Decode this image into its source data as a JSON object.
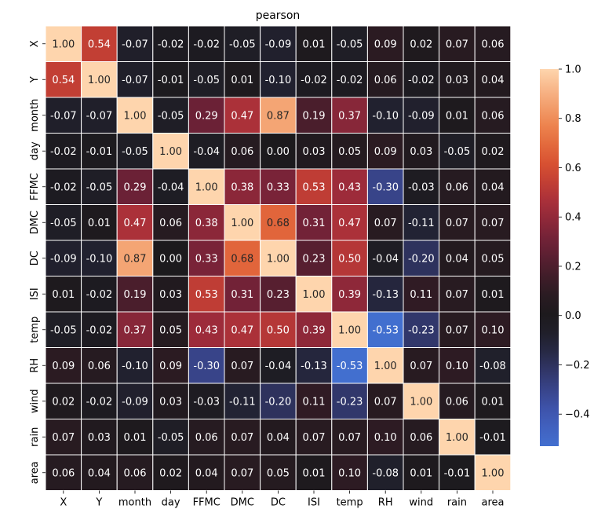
{
  "chart_data": {
    "type": "heatmap",
    "title": "pearson",
    "x_labels": [
      "X",
      "Y",
      "month",
      "day",
      "FFMC",
      "DMC",
      "DC",
      "ISI",
      "temp",
      "RH",
      "wind",
      "rain",
      "area"
    ],
    "y_labels": [
      "X",
      "Y",
      "month",
      "day",
      "FFMC",
      "DMC",
      "DC",
      "ISI",
      "temp",
      "RH",
      "wind",
      "rain",
      "area"
    ],
    "matrix": [
      [
        1.0,
        0.54,
        -0.07,
        -0.02,
        -0.02,
        -0.05,
        -0.09,
        0.01,
        -0.05,
        0.09,
        0.02,
        0.07,
        0.06
      ],
      [
        0.54,
        1.0,
        -0.07,
        -0.01,
        -0.05,
        0.01,
        -0.1,
        -0.02,
        -0.02,
        0.06,
        -0.02,
        0.03,
        0.04
      ],
      [
        -0.07,
        -0.07,
        1.0,
        -0.05,
        0.29,
        0.47,
        0.87,
        0.19,
        0.37,
        -0.1,
        -0.09,
        0.01,
        0.06
      ],
      [
        -0.02,
        -0.01,
        -0.05,
        1.0,
        -0.04,
        0.06,
        0.0,
        0.03,
        0.05,
        0.09,
        0.03,
        -0.05,
        0.02
      ],
      [
        -0.02,
        -0.05,
        0.29,
        -0.04,
        1.0,
        0.38,
        0.33,
        0.53,
        0.43,
        -0.3,
        -0.03,
        0.06,
        0.04
      ],
      [
        -0.05,
        0.01,
        0.47,
        0.06,
        0.38,
        1.0,
        0.68,
        0.31,
        0.47,
        0.07,
        -0.11,
        0.07,
        0.07
      ],
      [
        -0.09,
        -0.1,
        0.87,
        0.0,
        0.33,
        0.68,
        1.0,
        0.23,
        0.5,
        -0.04,
        -0.2,
        0.04,
        0.05
      ],
      [
        0.01,
        -0.02,
        0.19,
        0.03,
        0.53,
        0.31,
        0.23,
        1.0,
        0.39,
        -0.13,
        0.11,
        0.07,
        0.01
      ],
      [
        -0.05,
        -0.02,
        0.37,
        0.05,
        0.43,
        0.47,
        0.5,
        0.39,
        1.0,
        -0.53,
        -0.23,
        0.07,
        0.1
      ],
      [
        0.09,
        0.06,
        -0.1,
        0.09,
        -0.3,
        0.07,
        -0.04,
        -0.13,
        -0.53,
        1.0,
        0.07,
        0.1,
        -0.08
      ],
      [
        0.02,
        -0.02,
        -0.09,
        0.03,
        -0.03,
        -0.11,
        -0.2,
        0.11,
        -0.23,
        0.07,
        1.0,
        0.06,
        0.01
      ],
      [
        0.07,
        0.03,
        0.01,
        -0.05,
        0.06,
        0.07,
        0.04,
        0.07,
        0.07,
        0.1,
        0.06,
        1.0,
        -0.01
      ],
      [
        0.06,
        0.04,
        0.06,
        0.02,
        0.04,
        0.07,
        0.05,
        0.01,
        0.1,
        -0.08,
        0.01,
        -0.01,
        1.0
      ]
    ],
    "colorbar": {
      "range": [
        -0.53,
        1.0
      ],
      "ticks": [
        -0.4,
        -0.2,
        0.0,
        0.2,
        0.4,
        0.6,
        0.8,
        1.0
      ],
      "tick_labels": [
        "−0.4",
        "−0.2",
        "0.0",
        "0.2",
        "0.4",
        "0.6",
        "0.8",
        "1.0"
      ],
      "colormap": "icefire (diverging, centered at 0)"
    },
    "annotations": "values printed in each cell with 2 decimals",
    "grid": "white cell borders"
  }
}
